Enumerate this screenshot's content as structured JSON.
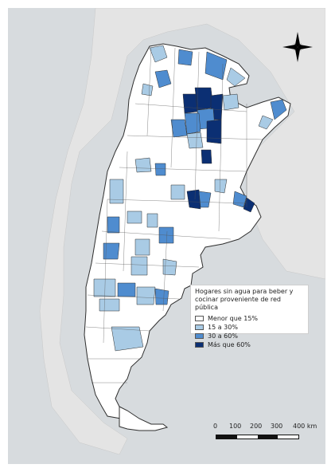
{
  "legend": {
    "title": "Hogares sin agua para beber y cocinar proveniente de red pública",
    "items": [
      {
        "label": "Menor que 15%",
        "color": "#ffffff"
      },
      {
        "label": "15 a 30%",
        "color": "#a9cbe5"
      },
      {
        "label": "30 a 60%",
        "color": "#4f8ccf"
      },
      {
        "label": "Más que 60%",
        "color": "#0b2f73"
      }
    ]
  },
  "scale": {
    "ticks": [
      "0",
      "100",
      "200",
      "300",
      "400 km"
    ]
  },
  "icons": {
    "compass": "north-arrow-compass-icon"
  },
  "colors": {
    "background_land": "#e2e2e2",
    "background_sea": "#cfd5d8",
    "country_outline": "#2f2f2f"
  }
}
